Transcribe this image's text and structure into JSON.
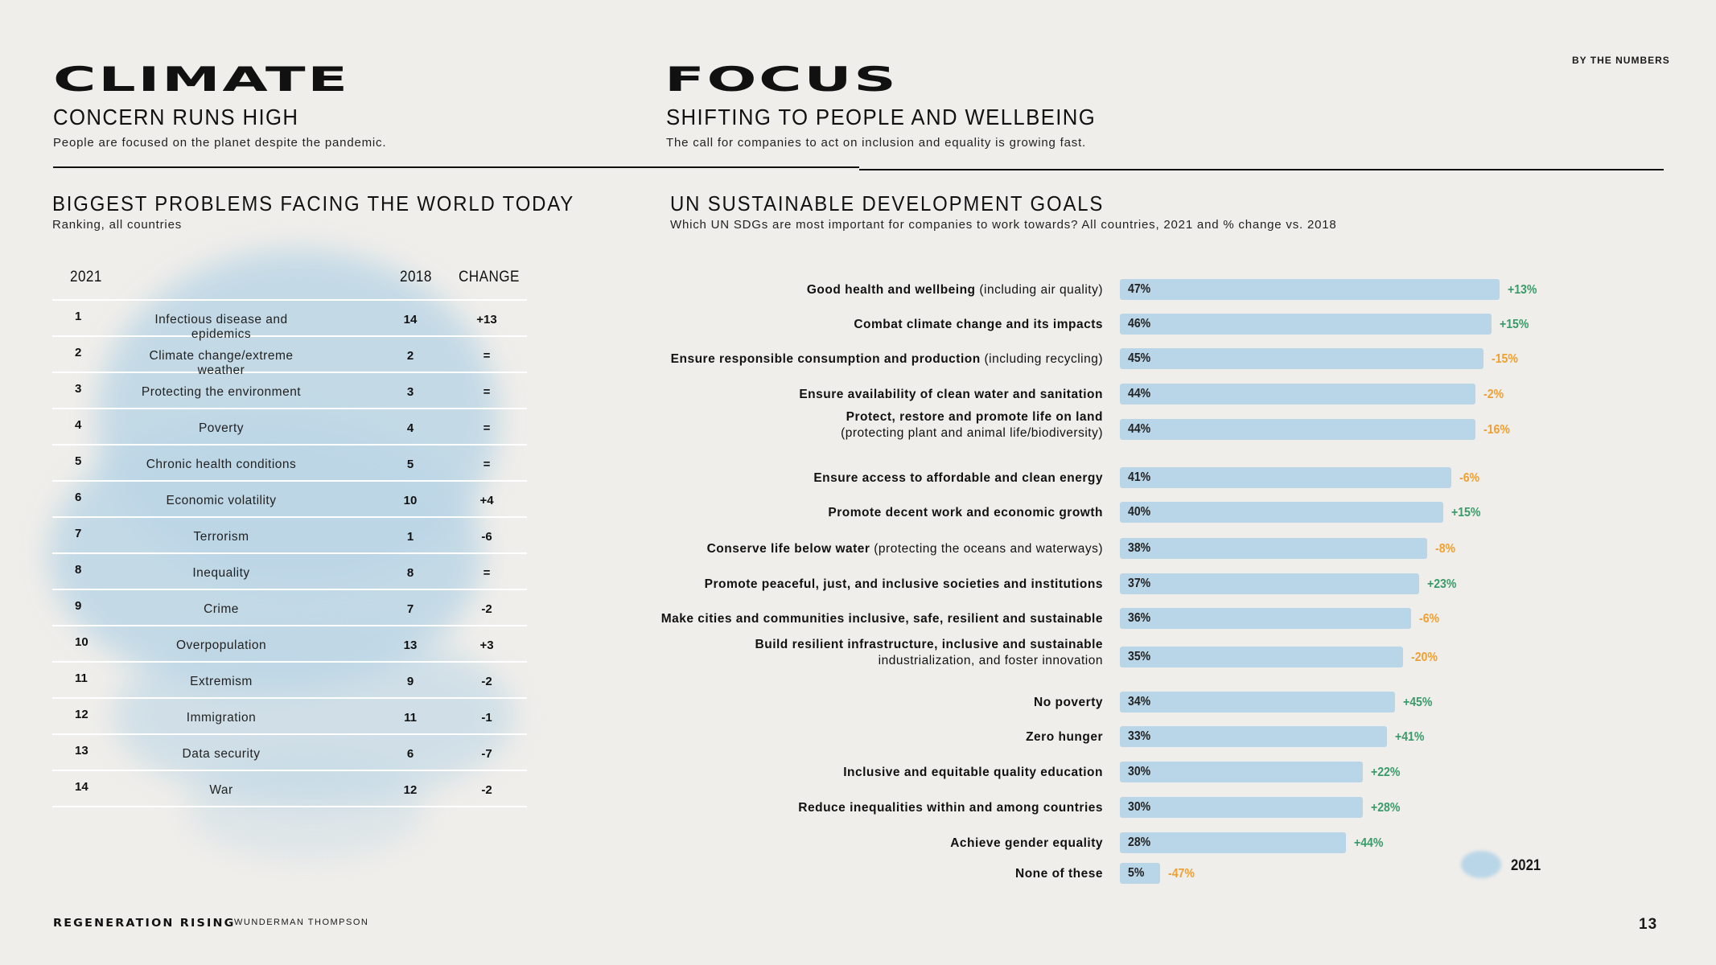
{
  "header": {
    "left_title": "CLIMATE",
    "left_subtitle": "CONCERN RUNS HIGH",
    "left_desc": "People are focused on the planet despite the pandemic.",
    "right_title": "FOCUS",
    "right_subtitle": "SHIFTING TO PEOPLE AND WELLBEING",
    "right_desc": "The call for companies to act on inclusion and equality is growing fast.",
    "tag": "BY THE NUMBERS"
  },
  "problems": {
    "title": "BIGGEST PROBLEMS FACING THE WORLD TODAY",
    "subtitle": "Ranking, all countries",
    "columns": [
      "2021",
      "2018",
      "CHANGE"
    ],
    "rows": [
      {
        "rank": "1",
        "name": "Infectious disease and epidemics",
        "y2018": "14",
        "change": "+13"
      },
      {
        "rank": "2",
        "name": "Climate change/extreme weather",
        "y2018": "2",
        "change": "="
      },
      {
        "rank": "3",
        "name": "Protecting the environment",
        "y2018": "3",
        "change": "="
      },
      {
        "rank": "4",
        "name": "Poverty",
        "y2018": "4",
        "change": "="
      },
      {
        "rank": "5",
        "name": "Chronic health conditions",
        "y2018": "5",
        "change": "="
      },
      {
        "rank": "6",
        "name": "Economic volatility",
        "y2018": "10",
        "change": "+4"
      },
      {
        "rank": "7",
        "name": "Terrorism",
        "y2018": "1",
        "change": "-6"
      },
      {
        "rank": "8",
        "name": "Inequality",
        "y2018": "8",
        "change": "="
      },
      {
        "rank": "9",
        "name": "Crime",
        "y2018": "7",
        "change": "-2"
      },
      {
        "rank": "10",
        "name": "Overpopulation",
        "y2018": "13",
        "change": "+3"
      },
      {
        "rank": "11",
        "name": "Extremism",
        "y2018": "9",
        "change": "-2"
      },
      {
        "rank": "12",
        "name": "Immigration",
        "y2018": "11",
        "change": "-1"
      },
      {
        "rank": "13",
        "name": "Data security",
        "y2018": "6",
        "change": "-7"
      },
      {
        "rank": "14",
        "name": "War",
        "y2018": "12",
        "change": "-2"
      }
    ]
  },
  "sdg": {
    "title": "UN SUSTAINABLE DEVELOPMENT GOALS",
    "subtitle": "Which UN SDGs are most important for companies to work towards? All countries, 2021 and % change vs. 2018",
    "legend": "2021"
  },
  "chart_data": {
    "type": "bar",
    "orientation": "horizontal",
    "series": [
      {
        "name": "2021",
        "unit": "%"
      }
    ],
    "positive_color": "#3a9b6a",
    "negative_color": "#f0a030",
    "bar_color": "#b9d6e8",
    "items": [
      {
        "bold": "Good health and wellbeing",
        "rest": " (including air quality)",
        "value": 47,
        "label": "47%",
        "change": "+13%"
      },
      {
        "bold": "Combat climate change and its impacts",
        "rest": "",
        "value": 46,
        "label": "46%",
        "change": "+15%"
      },
      {
        "bold": "Ensure responsible consumption and production",
        "rest": " (including recycling)",
        "value": 45,
        "label": "45%",
        "change": "-15%"
      },
      {
        "bold": "Ensure availability of clean water and sanitation",
        "rest": "",
        "value": 44,
        "label": "44%",
        "change": "-2%"
      },
      {
        "bold": "Protect, restore and promote life on land",
        "rest": "(protecting plant and animal life/biodiversity)",
        "value": 44,
        "label": "44%",
        "change": "-16%"
      },
      {
        "bold": "Ensure access to affordable and clean energy",
        "rest": "",
        "value": 41,
        "label": "41%",
        "change": "-6%"
      },
      {
        "bold": "Promote decent work and economic growth",
        "rest": "",
        "value": 40,
        "label": "40%",
        "change": "+15%"
      },
      {
        "bold": "Conserve life below water",
        "rest": " (protecting the oceans and waterways)",
        "value": 38,
        "label": "38%",
        "change": "-8%"
      },
      {
        "bold": "Promote peaceful, just, and inclusive societies and institutions",
        "rest": "",
        "value": 37,
        "label": "37%",
        "change": "+23%"
      },
      {
        "bold": "Make cities and communities inclusive, safe, resilient and sustainable",
        "rest": "",
        "value": 36,
        "label": "36%",
        "change": "-6%"
      },
      {
        "bold": "Build resilient infrastructure, inclusive and sustainable",
        "rest": "industrialization, and foster innovation",
        "value": 35,
        "label": "35%",
        "change": "-20%"
      },
      {
        "bold": "No poverty",
        "rest": "",
        "value": 34,
        "label": "34%",
        "change": "+45%"
      },
      {
        "bold": "Zero hunger",
        "rest": "",
        "value": 33,
        "label": "33%",
        "change": "+41%"
      },
      {
        "bold": "Inclusive and equitable quality education",
        "rest": "",
        "value": 30,
        "label": "30%",
        "change": "+22%"
      },
      {
        "bold": "Reduce inequalities within and among countries",
        "rest": "",
        "value": 30,
        "label": "30%",
        "change": "+28%"
      },
      {
        "bold": "Achieve gender equality",
        "rest": "",
        "value": 28,
        "label": "28%",
        "change": "+44%"
      },
      {
        "bold": "None of these",
        "rest": "",
        "value": 5,
        "label": "5%",
        "change": "-47%"
      }
    ]
  },
  "footer": {
    "brand": "REGENERATION RISING",
    "company": "WUNDERMAN THOMPSON",
    "page": "13"
  }
}
